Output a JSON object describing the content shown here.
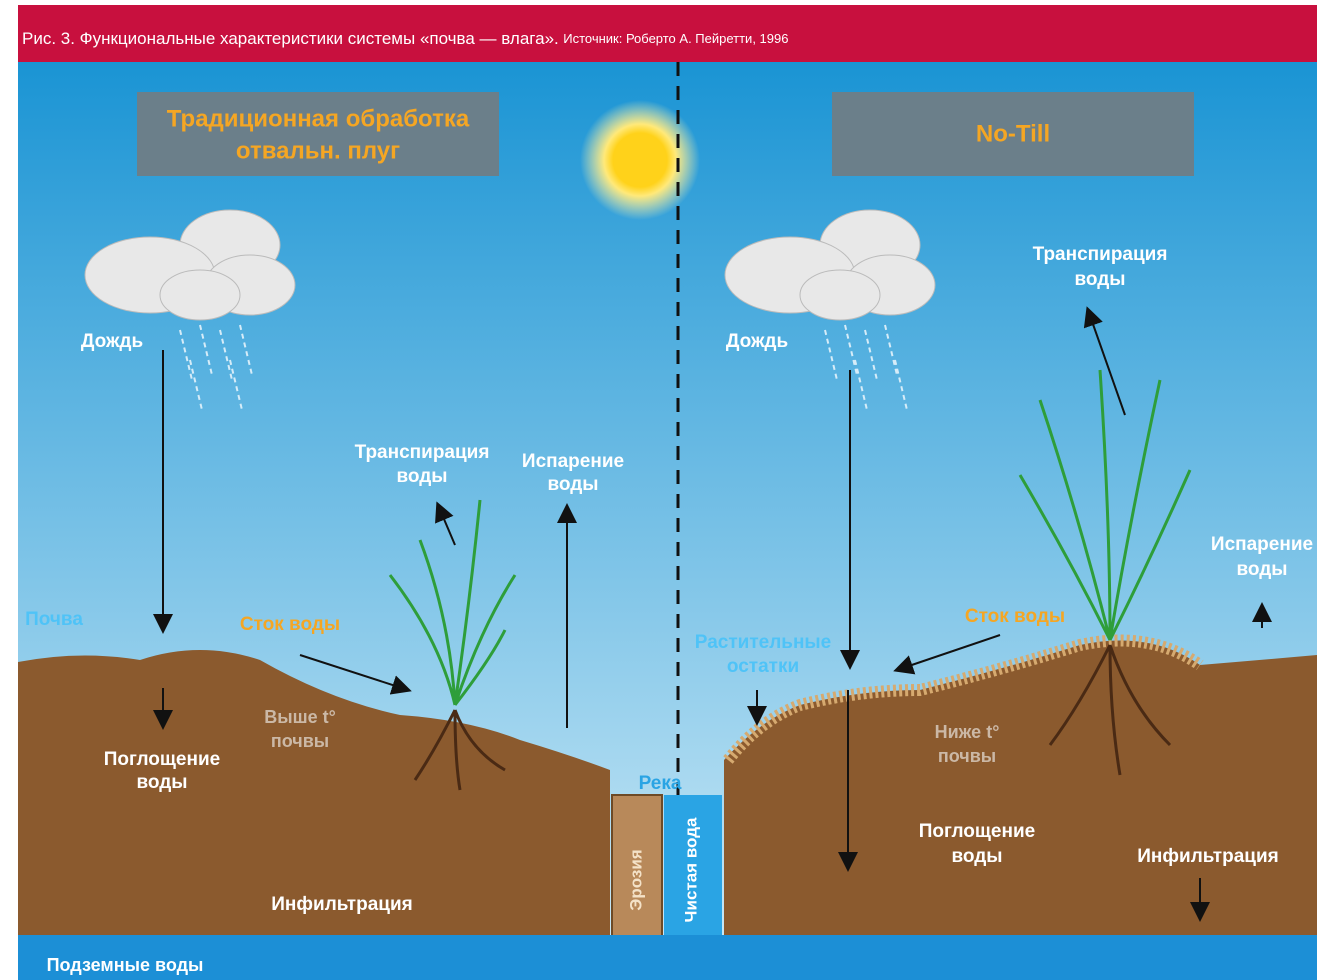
{
  "header": {
    "title": "Рис. 3. Функциональные характеристики системы «почва — влага».",
    "source": "Источник: Роберто А. Пейретти, 1996"
  },
  "left": {
    "title": [
      "Традиционная обработка",
      "отвальн. плуг"
    ],
    "rain": "Дождь",
    "soil": "Почва",
    "runoff": "Сток воды",
    "transpiration": [
      "Транспирация",
      "воды"
    ],
    "evaporation": [
      "Испарение",
      "воды"
    ],
    "soil_temp": [
      "Выше t°",
      "почвы"
    ],
    "absorption": [
      "Поглощение",
      "воды"
    ],
    "infiltration": "Инфильтрация"
  },
  "river": {
    "label": "Река",
    "erosion": "Эрозия",
    "clean_water": "Чистая вода"
  },
  "right": {
    "title": "No-Till",
    "rain": "Дождь",
    "transpiration": [
      "Транспирация",
      "воды"
    ],
    "residue": [
      "Растительные",
      "остатки"
    ],
    "runoff": "Сток воды",
    "evaporation": [
      "Испарение",
      "воды"
    ],
    "soil_temp": [
      "Ниже t°",
      "почвы"
    ],
    "absorption": [
      "Поглощение",
      "воды"
    ],
    "infiltration": "Инфильтрация"
  },
  "groundwater": "Подземные воды"
}
